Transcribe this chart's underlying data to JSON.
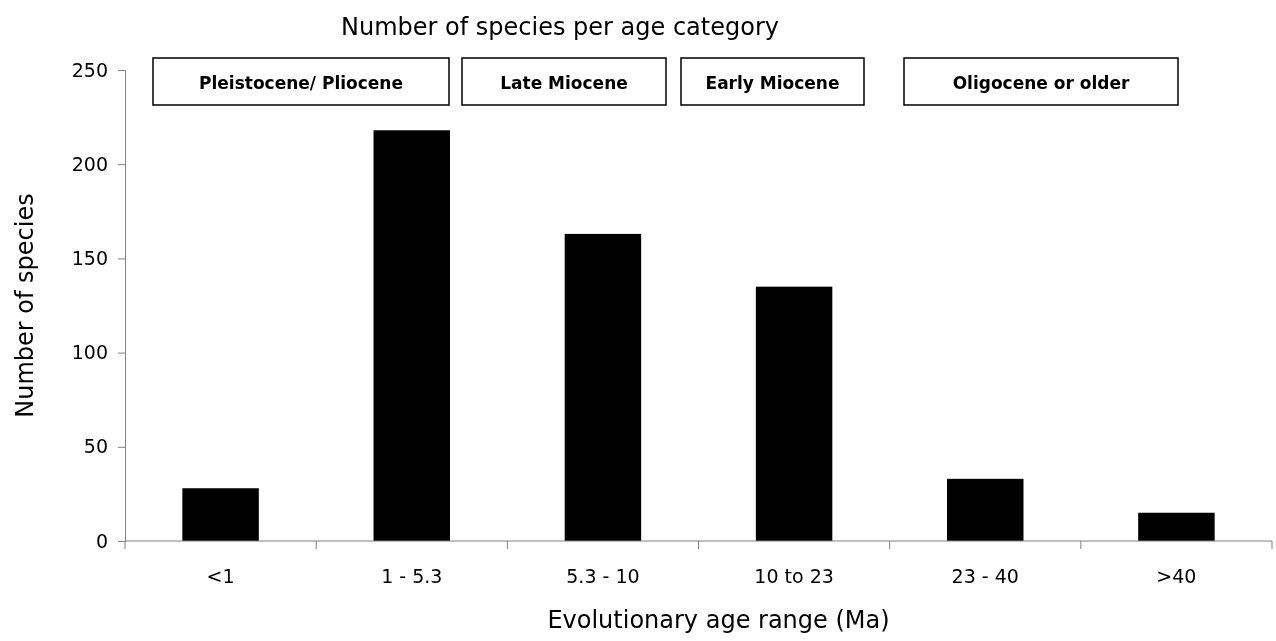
{
  "chart_data": {
    "type": "bar",
    "title": "Number of species per age category",
    "xlabel": "Evolutionary age range (Ma)",
    "ylabel": "Number of species",
    "categories": [
      "<1",
      "1 - 5.3",
      "5.3 - 10",
      "10 to 23",
      "23 - 40",
      ">40"
    ],
    "values": [
      28,
      218,
      163,
      135,
      33,
      15
    ],
    "color": "#000000",
    "ylim": [
      0,
      250
    ],
    "yticks": [
      0,
      50,
      100,
      150,
      200,
      250
    ],
    "grid": false,
    "annotations": [
      "Pleistocene/ Pliocene",
      "Late Miocene",
      "Early Miocene",
      "Oligocene or older"
    ]
  }
}
